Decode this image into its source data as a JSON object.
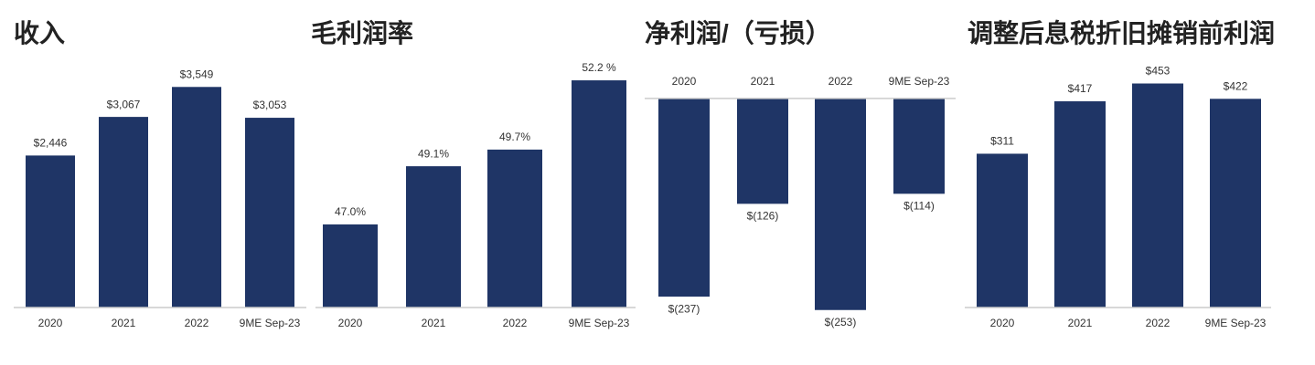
{
  "chart_data": [
    {
      "type": "bar",
      "title": "收入",
      "categories": [
        "2020",
        "2021",
        "2022",
        "9ME Sep-23"
      ],
      "values": [
        2446,
        3067,
        3549,
        3053
      ],
      "value_labels": [
        "$2,446",
        "$3,067",
        "$3,549",
        "$3,053"
      ],
      "color": "#1f3566",
      "ylim": [
        0,
        3700
      ]
    },
    {
      "type": "bar",
      "title": "毛利润率",
      "categories": [
        "2020",
        "2021",
        "2022",
        "9ME Sep-23"
      ],
      "values": [
        47.0,
        49.1,
        49.7,
        52.2
      ],
      "value_labels": [
        "47.0%",
        "49.1%",
        "49.7%",
        "52.2 %"
      ],
      "color": "#1f3566",
      "ylim": [
        44,
        52.3
      ]
    },
    {
      "type": "bar",
      "title": "净利润/（亏损）",
      "categories": [
        "2020",
        "2021",
        "2022",
        "9ME Sep-23"
      ],
      "values": [
        -237,
        -126,
        -253,
        -114
      ],
      "value_labels": [
        "$(237)",
        "$(126)",
        "$(253)",
        "$(114)"
      ],
      "color": "#1f3566",
      "ylim": [
        -250,
        25
      ]
    },
    {
      "type": "bar",
      "title": "调整后息税折旧摊销前利润",
      "categories": [
        "2020",
        "2021",
        "2022",
        "9ME Sep-23"
      ],
      "values": [
        311,
        417,
        453,
        422
      ],
      "value_labels": [
        "$311",
        "$417",
        "$453",
        "$422"
      ],
      "color": "#1f3566",
      "ylim": [
        0,
        465
      ]
    }
  ]
}
